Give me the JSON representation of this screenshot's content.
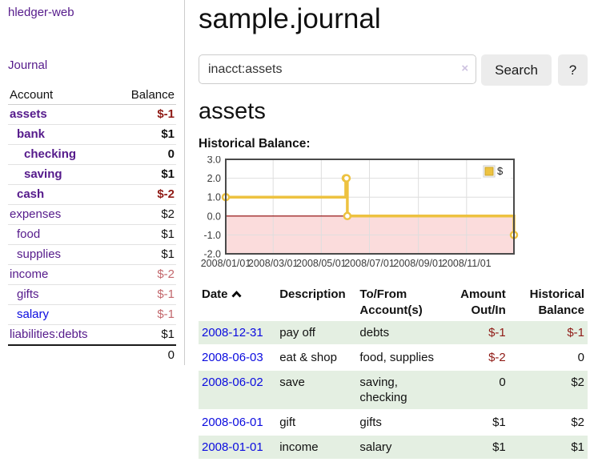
{
  "app": {
    "brand": "hledger-web",
    "nav_journal": "Journal"
  },
  "sidebar": {
    "header": {
      "account": "Account",
      "balance": "Balance"
    },
    "accounts": [
      {
        "name": "assets",
        "depth": 1,
        "balance": "$-1",
        "bold": true,
        "tone": "neg-strong",
        "link": "purple"
      },
      {
        "name": "bank",
        "depth": 2,
        "balance": "$1",
        "bold": true,
        "tone": "",
        "link": "purple"
      },
      {
        "name": "checking",
        "depth": 3,
        "balance": "0",
        "bold": true,
        "tone": "",
        "link": "purple"
      },
      {
        "name": "saving",
        "depth": 3,
        "balance": "$1",
        "bold": true,
        "tone": "",
        "link": "purple"
      },
      {
        "name": "cash",
        "depth": 2,
        "balance": "$-2",
        "bold": true,
        "tone": "neg-strong",
        "link": "purple"
      },
      {
        "name": "expenses",
        "depth": 1,
        "balance": "$2",
        "bold": false,
        "tone": "",
        "link": "purple"
      },
      {
        "name": "food",
        "depth": 2,
        "balance": "$1",
        "bold": false,
        "tone": "",
        "link": "purple"
      },
      {
        "name": "supplies",
        "depth": 2,
        "balance": "$1",
        "bold": false,
        "tone": "",
        "link": "purple"
      },
      {
        "name": "income",
        "depth": 1,
        "balance": "$-2",
        "bold": false,
        "tone": "neg-soft",
        "link": "purple"
      },
      {
        "name": "gifts",
        "depth": 2,
        "balance": "$-1",
        "bold": false,
        "tone": "neg-soft",
        "link": "purple"
      },
      {
        "name": "salary",
        "depth": 2,
        "balance": "$-1",
        "bold": false,
        "tone": "neg-soft",
        "link": "blue"
      },
      {
        "name": "liabilities:debts",
        "depth": 1,
        "balance": "$1",
        "bold": false,
        "tone": "",
        "link": "purple"
      }
    ],
    "total": "0"
  },
  "header": {
    "title": "sample.journal"
  },
  "search": {
    "value": "inacct:assets",
    "clear_icon": "×",
    "button_label": "Search",
    "help_label": "?"
  },
  "account_page": {
    "heading": "assets",
    "chart_label": "Historical Balance:"
  },
  "chart_data": {
    "type": "line",
    "title": "Historical Balance:",
    "series": [
      {
        "name": "$",
        "color": "#edc240",
        "step": true,
        "points": [
          {
            "date": "2008-01-01",
            "value": 1
          },
          {
            "date": "2008-06-01",
            "value": 2
          },
          {
            "date": "2008-06-02",
            "value": 2
          },
          {
            "date": "2008-06-03",
            "value": 0
          },
          {
            "date": "2008-12-31",
            "value": -1
          }
        ]
      }
    ],
    "x_range": [
      "2008-01-01",
      "2008-12-31"
    ],
    "x_ticks": [
      "2008/01/01",
      "2008/03/01",
      "2008/05/01",
      "2008/07/01",
      "2008/09/01",
      "2008/11/01"
    ],
    "y_ticks": [
      3.0,
      2.0,
      1.0,
      0.0,
      -1.0,
      -2.0
    ],
    "ylim": [
      -2,
      3
    ],
    "grid": true,
    "legend": {
      "label": "$",
      "position": "top-right"
    },
    "colors": {
      "negative_region": "#fbdcdc",
      "zero_line": "#8b0000",
      "gridline": "#dedede",
      "plot_border": "#4a4a4a",
      "tick_text": "#3b3b3b"
    }
  },
  "register": {
    "columns": [
      {
        "label": "Date",
        "sorted": "asc"
      },
      {
        "label": "Description"
      },
      {
        "label": "To/From Account(s)"
      },
      {
        "label": "Amount Out/In",
        "numeric": true
      },
      {
        "label": "Historical Balance",
        "numeric": true
      }
    ],
    "rows": [
      {
        "date": "2008-12-31",
        "description": "pay off",
        "accounts": "debts",
        "amount": "$-1",
        "balance": "$-1"
      },
      {
        "date": "2008-06-03",
        "description": "eat & shop",
        "accounts": "food, supplies",
        "amount": "$-2",
        "balance": "0"
      },
      {
        "date": "2008-06-02",
        "description": "save",
        "accounts": "saving, checking",
        "amount": "0",
        "balance": "$2"
      },
      {
        "date": "2008-06-01",
        "description": "gift",
        "accounts": "gifts",
        "amount": "$1",
        "balance": "$2"
      },
      {
        "date": "2008-01-01",
        "description": "income",
        "accounts": "salary",
        "amount": "$1",
        "balance": "$1"
      }
    ]
  },
  "ui_colors": {
    "link_purple": "#551a8b",
    "link_blue": "#0b0bdf",
    "negative_strong": "#8f1a15",
    "negative_soft": "#c3686d",
    "striped_row_green": "#e4efe2",
    "button_bg": "#ececec"
  }
}
